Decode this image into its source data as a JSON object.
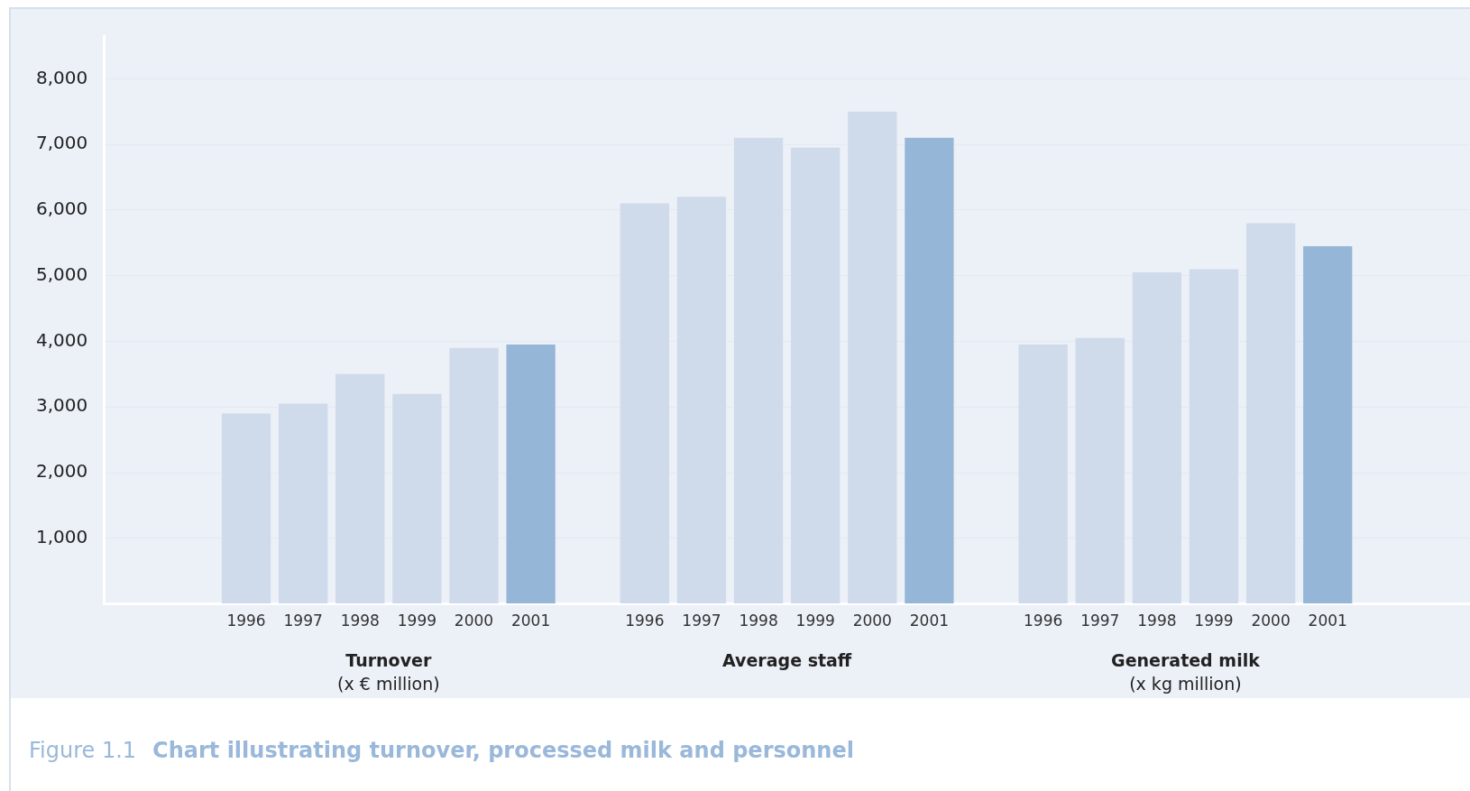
{
  "chart_data": {
    "type": "bar",
    "categories": [
      null,
      null,
      "1996",
      "1997",
      "1998",
      "1999",
      "2000",
      "2001",
      null,
      "1996",
      "1997",
      "1998",
      "1999",
      "2000",
      "2001",
      null,
      "1996",
      "1997",
      "1998",
      "1999",
      "2000",
      "2001",
      null,
      null
    ],
    "series": [
      {
        "name": "Turnover\n(x € million)",
        "values": [
          null,
          null,
          2900,
          3050,
          3500,
          3200,
          3900,
          3950,
          null,
          null,
          null,
          null,
          null,
          null,
          null,
          null,
          null,
          null,
          null,
          null,
          null,
          null,
          null,
          null
        ],
        "colors": [
          null,
          null,
          "#cfdaeb",
          "#cfdaeb",
          "#cfdaeb",
          "#cfdaeb",
          "#cfdaeb",
          "#96b6d8",
          null,
          null,
          null,
          null,
          null,
          null,
          null,
          null,
          null,
          null,
          null,
          null,
          null,
          null,
          null,
          null
        ]
      },
      {
        "name": "Average staff",
        "values": [
          null,
          null,
          null,
          null,
          null,
          null,
          null,
          null,
          null,
          6100,
          6200,
          7100,
          6950,
          7500,
          7100,
          null,
          null,
          null,
          null,
          null,
          null,
          null,
          null,
          null
        ],
        "colors": [
          null,
          null,
          null,
          null,
          null,
          null,
          null,
          null,
          null,
          "#cfdaeb",
          "#cfdaeb",
          "#cfdaeb",
          "#cfdaeb",
          "#cfdaeb",
          "#96b6d8",
          null,
          null,
          null,
          null,
          null,
          null,
          null,
          null,
          null
        ]
      },
      {
        "name": "Generated milk\n(x kg million)",
        "values": [
          null,
          null,
          null,
          null,
          null,
          null,
          null,
          null,
          null,
          null,
          null,
          null,
          null,
          null,
          null,
          null,
          3950,
          4050,
          5050,
          5100,
          5800,
          5450,
          null,
          null
        ],
        "colors": [
          null,
          null,
          null,
          null,
          null,
          null,
          null,
          null,
          null,
          null,
          null,
          null,
          null,
          null,
          null,
          null,
          "#cfdaeb",
          "#cfdaeb",
          "#cfdaeb",
          "#cfdaeb",
          "#cfdaeb",
          "#96b6d8",
          null,
          null
        ]
      }
    ],
    "ylim": [
      0,
      8650
    ],
    "yticks": [
      {
        "value": 0,
        "label": null
      },
      {
        "value": 1000,
        "label": "1,000"
      },
      {
        "value": 2000,
        "label": "2,000"
      },
      {
        "value": 3000,
        "label": "3,000"
      },
      {
        "value": 4000,
        "label": "4,000"
      },
      {
        "value": 5000,
        "label": "5,000"
      },
      {
        "value": 6000,
        "label": "6,000"
      },
      {
        "value": 7000,
        "label": "7,000"
      },
      {
        "value": 8000,
        "label": "8,000"
      }
    ],
    "grid": "y",
    "legend": false,
    "annotations": [
      "Figure 1.1",
      "Chart illustrating turnover, processed milk and personnel"
    ]
  }
}
